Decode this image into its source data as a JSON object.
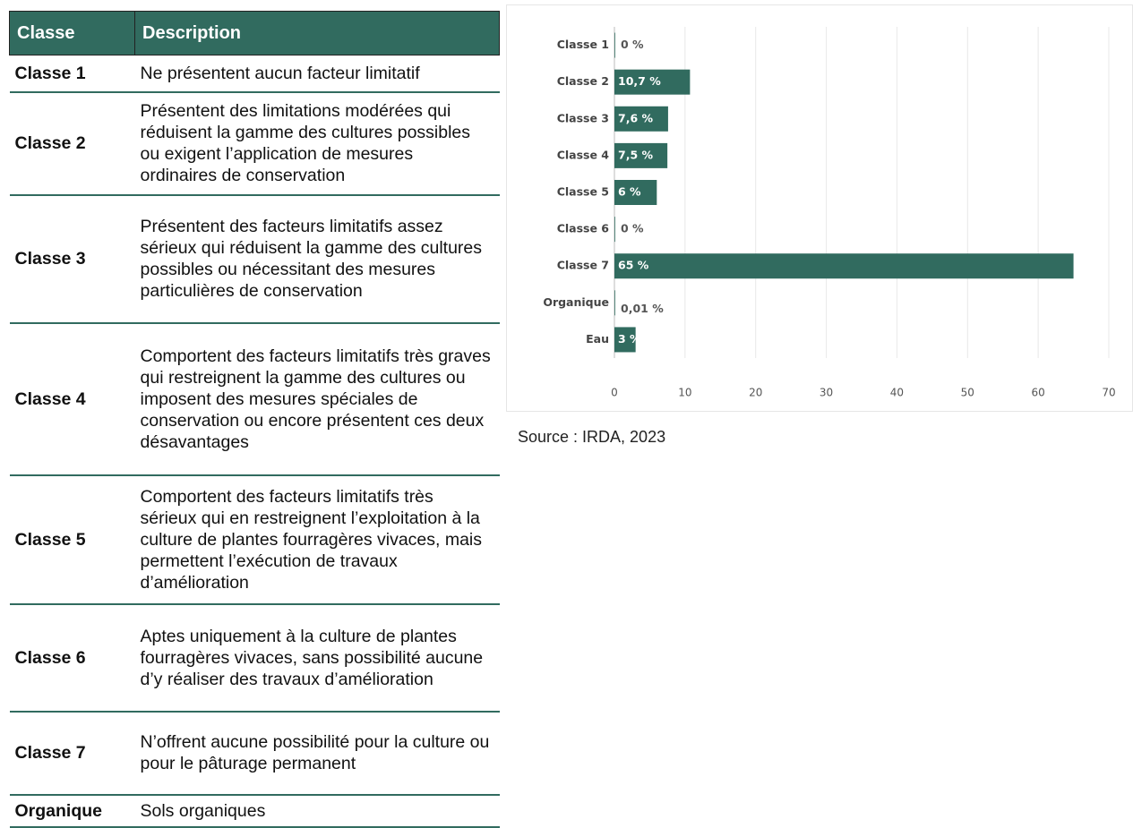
{
  "table": {
    "header": [
      "Classe",
      "Description"
    ],
    "rows": [
      [
        "Classe 1",
        "Ne présentent aucun facteur limitatif"
      ],
      [
        "Classe 2",
        "Présentent des limitations modérées qui réduisent la gamme des cultures possibles ou exigent l’application de mesures ordinaires de conservation"
      ],
      [
        "Classe 3",
        "Présentent des facteurs limitatifs assez sérieux qui réduisent la gamme des cultures possibles ou nécessitant des mesures particulières de conservation"
      ],
      [
        "Classe 4",
        "Comportent des facteurs limitatifs très graves qui restreignent la gamme des cultures ou imposent des mesures spéciales de conservation ou encore présentent ces deux désavantages"
      ],
      [
        "Classe 5",
        "Comportent des facteurs limitatifs très sérieux qui en restreignent l’exploitation à la culture de plantes fourragères vivaces, mais permettent l’exécution de travaux d’amélioration"
      ],
      [
        "Classe 6",
        "Aptes uniquement à la culture de plantes fourragères vivaces, sans possibilité aucune d’y réaliser des travaux d’amélioration"
      ],
      [
        "Classe 7",
        "N’offrent aucune possibilité pour la culture ou pour le pâturage permanent"
      ],
      [
        "Organique",
        "Sols organiques"
      ]
    ]
  },
  "chart_data": {
    "type": "bar",
    "categories": [
      "Classe 1",
      "Classe 2",
      "Classe 3",
      "Classe 4",
      "Classe 5",
      "Classe 6",
      "Classe 7",
      "Organique",
      "Eau"
    ],
    "values": [
      0,
      10.7,
      7.6,
      7.5,
      6,
      0,
      65,
      0.01,
      3
    ],
    "value_labels": [
      "0 %",
      "10,7 %",
      "7,6 %",
      "7,5 %",
      "6 %",
      "0 %",
      "65 %",
      "0,01 %",
      "3 %"
    ],
    "color": "#316b5f",
    "xlim": [
      0,
      70
    ],
    "xticks": [
      0,
      10,
      20,
      30,
      40,
      50,
      60,
      70
    ],
    "grid": true,
    "source": "Source : IRDA, 2023"
  }
}
